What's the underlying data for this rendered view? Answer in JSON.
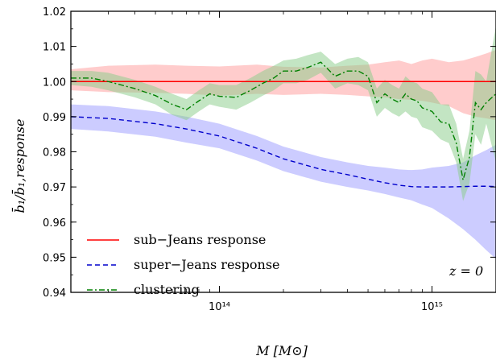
{
  "chart_data": {
    "type": "line",
    "title": "",
    "xlabel": "M  [M⊙]",
    "ylabel": "b̄₁/b̄₁,response",
    "xscale": "log",
    "xlim": [
      20000000000000.0,
      2000000000000000.0
    ],
    "ylim": [
      0.94,
      1.02
    ],
    "grid": false,
    "legend_position": "lower-left",
    "x_ticks": [
      {
        "value": 100000000000000.0,
        "label": "10¹⁴"
      },
      {
        "value": 1000000000000000.0,
        "label": "10¹⁵"
      }
    ],
    "y_ticks": [
      {
        "value": 0.94,
        "label": "0.94"
      },
      {
        "value": 0.95,
        "label": "0.95"
      },
      {
        "value": 0.96,
        "label": "0.96"
      },
      {
        "value": 0.97,
        "label": "0.97"
      },
      {
        "value": 0.98,
        "label": "0.98"
      },
      {
        "value": 0.99,
        "label": "0.99"
      },
      {
        "value": 1.0,
        "label": "1.00"
      },
      {
        "value": 1.01,
        "label": "1.01"
      },
      {
        "value": 1.02,
        "label": "1.02"
      }
    ],
    "annotation": "z = 0",
    "series": [
      {
        "name": "sub−Jeans response",
        "color": "#ff0000",
        "fill_color": "#ff9999",
        "linestyle": "solid",
        "x": [
          20000000000000.0,
          30000000000000.0,
          50000000000000.0,
          70000000000000.0,
          100000000000000.0,
          150000000000000.0,
          200000000000000.0,
          300000000000000.0,
          400000000000000.0,
          500000000000000.0,
          600000000000000.0,
          700000000000000.0,
          800000000000000.0,
          900000000000000.0,
          1000000000000000.0,
          1200000000000000.0,
          1400000000000000.0,
          1600000000000000.0,
          1800000000000000.0,
          2000000000000000.0
        ],
        "y": [
          1.0,
          1.0,
          1.0,
          1.0,
          1.0,
          1.0,
          1.0,
          1.0,
          1.0,
          1.0,
          1.0,
          1.0,
          1.0,
          1.0,
          1.0,
          1.0,
          1.0,
          1.0,
          1.0,
          1.0
        ],
        "y_upper": [
          1.0035,
          1.0045,
          1.0048,
          1.0045,
          1.0043,
          1.0048,
          1.0042,
          1.004,
          1.0045,
          1.0048,
          1.0055,
          1.006,
          1.005,
          1.006,
          1.0065,
          1.0055,
          1.006,
          1.007,
          1.008,
          1.009
        ],
        "y_lower": [
          0.9975,
          0.997,
          0.9968,
          0.9965,
          0.996,
          0.9965,
          0.9962,
          0.9965,
          0.9962,
          0.9958,
          0.9955,
          0.995,
          0.9948,
          0.9945,
          0.994,
          0.993,
          0.991,
          0.99,
          0.9895,
          0.989
        ]
      },
      {
        "name": "super−Jeans response",
        "color": "#0000cc",
        "fill_color": "#9999ff",
        "linestyle": "dashed",
        "x": [
          20000000000000.0,
          30000000000000.0,
          50000000000000.0,
          70000000000000.0,
          100000000000000.0,
          150000000000000.0,
          200000000000000.0,
          300000000000000.0,
          400000000000000.0,
          500000000000000.0,
          600000000000000.0,
          700000000000000.0,
          800000000000000.0,
          900000000000000.0,
          1000000000000000.0,
          1200000000000000.0,
          1400000000000000.0,
          1600000000000000.0,
          1800000000000000.0,
          2000000000000000.0
        ],
        "y": [
          0.99,
          0.9895,
          0.988,
          0.9865,
          0.9845,
          0.981,
          0.978,
          0.975,
          0.9735,
          0.9722,
          0.9712,
          0.9705,
          0.9701,
          0.97,
          0.97,
          0.97,
          0.9701,
          0.9702,
          0.9702,
          0.9701
        ],
        "y_upper": [
          0.9935,
          0.993,
          0.9915,
          0.99,
          0.988,
          0.9845,
          0.9815,
          0.9785,
          0.977,
          0.976,
          0.9755,
          0.975,
          0.9748,
          0.975,
          0.9755,
          0.976,
          0.977,
          0.979,
          0.9805,
          0.982
        ],
        "y_lower": [
          0.9865,
          0.9858,
          0.9843,
          0.9826,
          0.981,
          0.9775,
          0.9745,
          0.9715,
          0.97,
          0.969,
          0.968,
          0.967,
          0.9662,
          0.965,
          0.964,
          0.961,
          0.958,
          0.955,
          0.952,
          0.9495
        ]
      },
      {
        "name": "clustering",
        "color": "#008000",
        "fill_color": "#88cc88",
        "linestyle": "dashdot",
        "x": [
          20000000000000.0,
          25000000000000.0,
          30000000000000.0,
          40000000000000.0,
          50000000000000.0,
          60000000000000.0,
          70000000000000.0,
          80000000000000.0,
          90000000000000.0,
          100000000000000.0,
          120000000000000.0,
          140000000000000.0,
          160000000000000.0,
          180000000000000.0,
          200000000000000.0,
          230000000000000.0,
          260000000000000.0,
          300000000000000.0,
          350000000000000.0,
          400000000000000.0,
          450000000000000.0,
          500000000000000.0,
          550000000000000.0,
          600000000000000.0,
          650000000000000.0,
          700000000000000.0,
          750000000000000.0,
          800000000000000.0,
          850000000000000.0,
          900000000000000.0,
          1000000000000000.0,
          1100000000000000.0,
          1200000000000000.0,
          1300000000000000.0,
          1400000000000000.0,
          1500000000000000.0,
          1600000000000000.0,
          1700000000000000.0,
          1800000000000000.0,
          2000000000000000.0
        ],
        "y": [
          1.001,
          1.001,
          1.0,
          0.998,
          0.996,
          0.9935,
          0.992,
          0.9945,
          0.9965,
          0.9958,
          0.9955,
          0.9975,
          0.9995,
          1.001,
          1.003,
          1.003,
          1.004,
          1.0055,
          1.0015,
          1.003,
          1.003,
          1.0015,
          0.994,
          0.9965,
          0.995,
          0.994,
          0.9965,
          0.995,
          0.9945,
          0.9925,
          0.9915,
          0.9885,
          0.988,
          0.9825,
          0.972,
          0.9785,
          0.994,
          0.992,
          0.994,
          0.9965
        ],
        "y_upper": [
          1.003,
          1.003,
          1.0025,
          1.0005,
          0.9985,
          0.9965,
          0.995,
          0.9975,
          0.9995,
          0.999,
          0.999,
          1.001,
          1.003,
          1.0045,
          1.006,
          1.0065,
          1.0075,
          1.0085,
          1.005,
          1.0065,
          1.007,
          1.0055,
          0.998,
          1.0005,
          0.999,
          0.998,
          1.0015,
          1.0,
          0.9995,
          0.998,
          0.997,
          0.9935,
          0.9935,
          0.988,
          0.978,
          0.986,
          1.003,
          1.002,
          1.0,
          1.016
        ],
        "y_lower": [
          0.999,
          0.9985,
          0.9975,
          0.9955,
          0.9935,
          0.9905,
          0.989,
          0.9915,
          0.9935,
          0.9928,
          0.992,
          0.994,
          0.996,
          0.9975,
          0.9995,
          0.9995,
          1.0005,
          1.0025,
          0.998,
          0.9995,
          0.999,
          0.9975,
          0.99,
          0.9925,
          0.991,
          0.99,
          0.9915,
          0.99,
          0.9895,
          0.987,
          0.986,
          0.9835,
          0.9825,
          0.977,
          0.966,
          0.971,
          0.985,
          0.982,
          0.988,
          0.977
        ]
      }
    ]
  }
}
